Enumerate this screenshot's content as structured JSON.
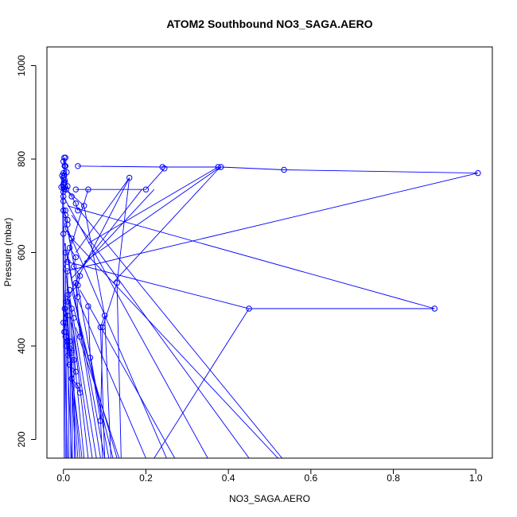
{
  "chart_data": {
    "type": "line",
    "title": "ATOM2 Southbound NO3_SAGA.AERO",
    "xlabel": "NO3_SAGA.AERO",
    "ylabel": "Pressure (mbar)",
    "xlim": [
      -0.04,
      1.04
    ],
    "ylim": [
      1040,
      160
    ],
    "y_reversed": true,
    "x_ticks": [
      0.0,
      0.2,
      0.4,
      0.6,
      0.8,
      1.0
    ],
    "x_tick_labels": [
      "0.0",
      "0.2",
      "0.4",
      "0.6",
      "0.8",
      "1.0"
    ],
    "y_ticks": [
      200,
      400,
      600,
      800,
      1000
    ],
    "y_tick_labels": [
      "200",
      "400",
      "600",
      "800",
      "1000"
    ],
    "grid": false,
    "marker": "open-circle",
    "series_color": "#0000ff",
    "series": [
      {
        "x": [
          0.005,
          0.0,
          0.003,
          0.0,
          0.002,
          0.0,
          0.003,
          0.001,
          0.0,
          0.004,
          0.002,
          0.0,
          -0.005,
          -0.003,
          0.005,
          0.002,
          0.003,
          0.008,
          0.004,
          0.01,
          0.007,
          0.02,
          0.03,
          0.035
        ],
        "y": [
          803,
          795,
          785,
          770,
          765,
          760,
          755,
          750,
          745,
          740,
          735,
          730,
          740,
          765,
          785,
          803,
          785,
          772,
          750,
          742,
          735,
          720,
          705,
          690
        ]
      },
      {
        "x": [
          0.03,
          0.06,
          0.2,
          0.245
        ],
        "y": [
          735,
          735,
          735,
          780
        ]
      },
      {
        "x": [
          0.035,
          0.24,
          0.375,
          0.382,
          0.535,
          1.005
        ],
        "y": [
          785,
          783,
          783,
          783,
          777,
          770
        ]
      },
      {
        "x": [
          0.0,
          0.01,
          0.005,
          0.02,
          0.015,
          0.03,
          0.025,
          0.04,
          0.035,
          0.012,
          0.008,
          0.003,
          0.01,
          0.005,
          0.002
        ],
        "y": [
          690,
          670,
          650,
          630,
          610,
          590,
          570,
          550,
          530,
          510,
          495,
          480,
          465,
          450,
          430
        ]
      },
      {
        "x": [
          0.005,
          0.015,
          0.008,
          0.02,
          0.012,
          0.025,
          0.015,
          0.03,
          0.02,
          0.035,
          0.04
        ],
        "y": [
          420,
          410,
          400,
          390,
          380,
          370,
          360,
          345,
          330,
          315,
          300
        ]
      },
      {
        "x": [
          0.06,
          0.065,
          0.09,
          0.095,
          0.13,
          0.16
        ],
        "y": [
          485,
          375,
          240,
          440,
          535,
          760
        ]
      },
      {
        "x": [
          0.035,
          0.03,
          0.04
        ],
        "y": [
          505,
          535,
          420
        ]
      },
      {
        "x": [
          0.01,
          0.45,
          0.9
        ],
        "y": [
          580,
          480,
          480
        ]
      },
      {
        "x": [
          0.0,
          0.05,
          0.1,
          0.09
        ],
        "y": [
          740,
          700,
          465,
          440
        ]
      }
    ],
    "connectors": [
      {
        "x": [
          0.0,
          0.01
        ],
        "y": [
          500,
          160
        ]
      },
      {
        "x": [
          0.005,
          0.02
        ],
        "y": [
          480,
          160
        ]
      },
      {
        "x": [
          0.01,
          0.03
        ],
        "y": [
          470,
          160
        ]
      },
      {
        "x": [
          0.002,
          0.04
        ],
        "y": [
          520,
          160
        ]
      },
      {
        "x": [
          0.008,
          0.05
        ],
        "y": [
          540,
          160
        ]
      },
      {
        "x": [
          0.015,
          0.06
        ],
        "y": [
          500,
          160
        ]
      },
      {
        "x": [
          0.02,
          0.07
        ],
        "y": [
          460,
          160
        ]
      },
      {
        "x": [
          0.005,
          0.08
        ],
        "y": [
          560,
          160
        ]
      },
      {
        "x": [
          0.01,
          0.09
        ],
        "y": [
          600,
          160
        ]
      },
      {
        "x": [
          0.003,
          0.1
        ],
        "y": [
          620,
          160
        ]
      },
      {
        "x": [
          0.0,
          0.11
        ],
        "y": [
          700,
          160
        ]
      },
      {
        "x": [
          0.02,
          0.12
        ],
        "y": [
          520,
          160
        ]
      },
      {
        "x": [
          0.025,
          0.13
        ],
        "y": [
          480,
          160
        ]
      },
      {
        "x": [
          0.03,
          0.135
        ],
        "y": [
          440,
          160
        ]
      },
      {
        "x": [
          0.035,
          0.2
        ],
        "y": [
          500,
          160
        ]
      },
      {
        "x": [
          0.04,
          0.27
        ],
        "y": [
          520,
          160
        ]
      },
      {
        "x": [
          0.01,
          0.25
        ],
        "y": [
          650,
          160
        ]
      },
      {
        "x": [
          0.0,
          0.35
        ],
        "y": [
          720,
          160
        ]
      },
      {
        "x": [
          0.02,
          0.45
        ],
        "y": [
          680,
          160
        ]
      },
      {
        "x": [
          0.01,
          0.52
        ],
        "y": [
          640,
          160
        ]
      },
      {
        "x": [
          0.03,
          0.53
        ],
        "y": [
          700,
          160
        ]
      },
      {
        "x": [
          0.45,
          0.22
        ],
        "y": [
          480,
          160
        ]
      },
      {
        "x": [
          0.0,
          0.005
        ],
        "y": [
          760,
          160
        ]
      },
      {
        "x": [
          -0.002,
          0.002
        ],
        "y": [
          730,
          160
        ]
      },
      {
        "x": [
          0.005,
          0.008
        ],
        "y": [
          620,
          160
        ]
      },
      {
        "x": [
          0.01,
          0.013
        ],
        "y": [
          560,
          160
        ]
      },
      {
        "x": [
          0.015,
          0.018
        ],
        "y": [
          500,
          160
        ]
      },
      {
        "x": [
          0.02,
          0.022
        ],
        "y": [
          450,
          160
        ]
      },
      {
        "x": [
          0.025,
          0.027
        ],
        "y": [
          420,
          160
        ]
      },
      {
        "x": [
          0.008,
          0.035
        ],
        "y": [
          460,
          160
        ]
      },
      {
        "x": [
          0.012,
          0.045
        ],
        "y": [
          400,
          160
        ]
      },
      {
        "x": [
          0.09,
          0.095
        ],
        "y": [
          240,
          160
        ]
      },
      {
        "x": [
          0.13,
          0.14
        ],
        "y": [
          535,
          160
        ]
      },
      {
        "x": [
          0.09,
          0.1
        ],
        "y": [
          440,
          160
        ]
      },
      {
        "x": [
          0.1,
          0.115
        ],
        "y": [
          465,
          160
        ]
      }
    ],
    "extra_points": {
      "x": [
        0.0,
        0.005,
        0.01,
        0.015,
        0.02,
        0.025,
        0.0,
        0.005,
        0.01,
        0.015,
        0.02,
        0.0,
        0.005,
        0.01,
        0.0,
        0.005
      ],
      "y": [
        640,
        600,
        560,
        520,
        480,
        460,
        450,
        430,
        410,
        395,
        385,
        720,
        690,
        660,
        710,
        680
      ]
    },
    "diagonal_lines": [
      {
        "x": [
          0.02,
          0.22
        ],
        "y": [
          545,
          735
        ]
      },
      {
        "x": [
          0.04,
          0.19
        ],
        "y": [
          565,
          735
        ]
      },
      {
        "x": [
          0.06,
          0.375
        ],
        "y": [
          620,
          783
        ]
      },
      {
        "x": [
          0.05,
          0.38
        ],
        "y": [
          580,
          783
        ]
      },
      {
        "x": [
          0.03,
          0.16
        ],
        "y": [
          600,
          760
        ]
      },
      {
        "x": [
          0.12,
          0.38
        ],
        "y": [
          535,
          783
        ]
      },
      {
        "x": [
          0.02,
          0.16
        ],
        "y": [
          520,
          760
        ]
      },
      {
        "x": [
          0.0,
          0.06
        ],
        "y": [
          560,
          735
        ]
      },
      {
        "x": [
          0.01,
          0.9
        ],
        "y": [
          700,
          480
        ]
      },
      {
        "x": [
          0.005,
          1.005
        ],
        "y": [
          560,
          770
        ]
      }
    ]
  }
}
